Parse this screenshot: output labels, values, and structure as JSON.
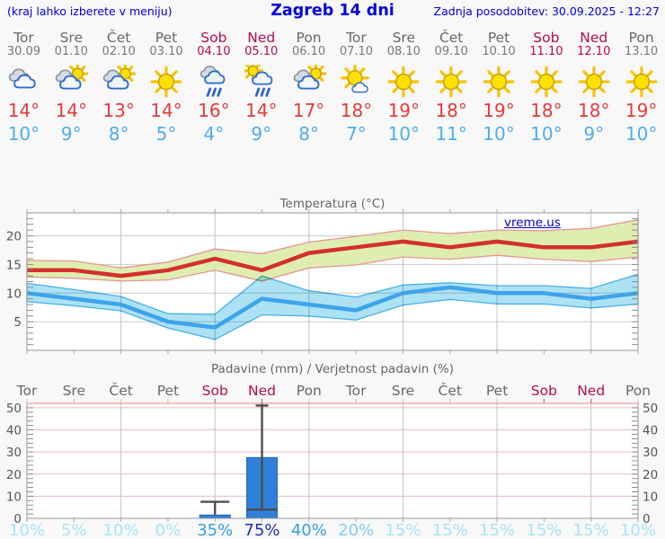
{
  "header": {
    "left_note": "(kraj lahko izberete v meniju)",
    "title": "Zagreb 14 dni",
    "updated": "Zadnja posodobitev: 30.09.2025 - 12:27"
  },
  "days": [
    {
      "name": "Tor",
      "date": "30.09",
      "weekend": false,
      "icon": "cloudy",
      "tmax": "14°",
      "tmin": "10°",
      "prob": "10%"
    },
    {
      "name": "Sre",
      "date": "01.10",
      "weekend": false,
      "icon": "partly-cloudy",
      "tmax": "14°",
      "tmin": "9°",
      "prob": "5%"
    },
    {
      "name": "Čet",
      "date": "02.10",
      "weekend": false,
      "icon": "partly-cloudy",
      "tmax": "13°",
      "tmin": "8°",
      "prob": "10%"
    },
    {
      "name": "Pet",
      "date": "03.10",
      "weekend": false,
      "icon": "sunny",
      "tmax": "14°",
      "tmin": "5°",
      "prob": "0%"
    },
    {
      "name": "Sob",
      "date": "04.10",
      "weekend": true,
      "icon": "rain",
      "tmax": "16°",
      "tmin": "4°",
      "prob": "35%"
    },
    {
      "name": "Ned",
      "date": "05.10",
      "weekend": true,
      "icon": "sun-rain",
      "tmax": "14°",
      "tmin": "9°",
      "prob": "75%"
    },
    {
      "name": "Pon",
      "date": "06.10",
      "weekend": false,
      "icon": "partly-cloudy",
      "tmax": "17°",
      "tmin": "8°",
      "prob": "40%"
    },
    {
      "name": "Tor",
      "date": "07.10",
      "weekend": false,
      "icon": "mostly-sunny",
      "tmax": "18°",
      "tmin": "7°",
      "prob": "20%"
    },
    {
      "name": "Sre",
      "date": "08.10",
      "weekend": false,
      "icon": "sunny",
      "tmax": "19°",
      "tmin": "10°",
      "prob": "15%"
    },
    {
      "name": "Čet",
      "date": "09.10",
      "weekend": false,
      "icon": "sunny",
      "tmax": "18°",
      "tmin": "11°",
      "prob": "15%"
    },
    {
      "name": "Pet",
      "date": "10.10",
      "weekend": false,
      "icon": "sunny",
      "tmax": "19°",
      "tmin": "10°",
      "prob": "15%"
    },
    {
      "name": "Sob",
      "date": "11.10",
      "weekend": true,
      "icon": "sunny",
      "tmax": "18°",
      "tmin": "10°",
      "prob": "15%"
    },
    {
      "name": "Ned",
      "date": "12.10",
      "weekend": true,
      "icon": "sunny",
      "tmax": "18°",
      "tmin": "9°",
      "prob": "15%"
    },
    {
      "name": "Pon",
      "date": "13.10",
      "weekend": false,
      "icon": "sunny",
      "tmax": "19°",
      "tmin": "10°",
      "prob": "10%"
    }
  ],
  "chart_data": [
    {
      "type": "line",
      "title": "Temperatura (°C)",
      "watermark": "vreme.us",
      "categories": [
        "Tor 30.09",
        "Sre 01.10",
        "Čet 02.10",
        "Pet 03.10",
        "Sob 04.10",
        "Ned 05.10",
        "Pon 06.10",
        "Tor 07.10",
        "Sre 08.10",
        "Čet 09.10",
        "Pet 10.10",
        "Sob 11.10",
        "Ned 12.10",
        "Pon 13.10"
      ],
      "ylim": [
        0,
        24
      ],
      "yticks": [
        5,
        10,
        15,
        20
      ],
      "grid": true,
      "legend_position": "none",
      "series": [
        {
          "name": "max temperatura",
          "color": "#d32f2f",
          "values": [
            14,
            14,
            13,
            14,
            16,
            14,
            17,
            18,
            19,
            18,
            19,
            18,
            18,
            19
          ]
        },
        {
          "name": "max razpon zgoraj",
          "values": [
            15.7,
            15.6,
            14.4,
            15.4,
            17.7,
            16.9,
            18.9,
            19.9,
            21.0,
            20.4,
            21.0,
            20.9,
            21.3,
            22.8
          ]
        },
        {
          "name": "max razpon spodaj",
          "values": [
            12.8,
            12.6,
            12.1,
            12.3,
            14.0,
            12.1,
            14.4,
            14.9,
            16.3,
            15.9,
            16.6,
            15.9,
            15.5,
            16.3
          ]
        },
        {
          "name": "min temperatura",
          "color": "#3da4ea",
          "values": [
            10,
            9,
            8,
            5,
            4,
            9,
            8,
            7,
            10,
            11,
            10,
            10,
            9,
            10
          ]
        },
        {
          "name": "min razpon zgoraj",
          "values": [
            11.7,
            10.6,
            9.4,
            6.4,
            6.3,
            13.0,
            10.4,
            9.3,
            11.4,
            11.8,
            11.3,
            11.3,
            10.8,
            13.3
          ]
        },
        {
          "name": "min razpon spodaj",
          "values": [
            8.5,
            7.8,
            6.9,
            3.9,
            1.9,
            6.2,
            6.0,
            5.3,
            7.9,
            8.9,
            8.1,
            8.1,
            7.4,
            8.1
          ]
        }
      ]
    },
    {
      "type": "bar",
      "title": "Padavine (mm) / Verjetnost padavin (%)",
      "categories": [
        "Tor",
        "Sre",
        "Čet",
        "Pet",
        "Sob",
        "Ned",
        "Pon",
        "Tor",
        "Sre",
        "Čet",
        "Pet",
        "Sob",
        "Ned",
        "Pon"
      ],
      "values": [
        0,
        0,
        0,
        0,
        1.5,
        27.5,
        0,
        0,
        0,
        0,
        0,
        0,
        0,
        0
      ],
      "whisker_high": [
        0,
        0,
        0,
        0,
        7.5,
        52,
        0,
        0,
        0,
        0,
        0,
        0,
        0,
        0
      ],
      "whisker_low": [
        0,
        0,
        0,
        0,
        1.5,
        4,
        0,
        0,
        0,
        0,
        0,
        0,
        0,
        0
      ],
      "probabilities": [
        "10%",
        "5%",
        "10%",
        "0%",
        "35%",
        "75%",
        "40%",
        "20%",
        "15%",
        "15%",
        "15%",
        "15%",
        "15%",
        "10%"
      ],
      "ylim": [
        0,
        52
      ],
      "yticks": [
        0,
        10,
        20,
        30,
        40,
        50
      ],
      "grid": true,
      "y_axis_sides": "both"
    }
  ],
  "colors": {
    "accent_blue": "#0000e0",
    "weekday_text": "#686868",
    "weekend_text": "#b70b50",
    "tmax_text": "#e23b3b",
    "tmin_text": "#4facee",
    "tmax_line": "#d32f2f",
    "tmax_band": "#dcecaa",
    "tmax_band_edge": "#e59595",
    "tmin_line": "#3da4ea",
    "tmin_band": "#a6dff3",
    "tmin_band_edge": "#49b0ea",
    "bar_fill": "#2e80d8",
    "bar_edge": "#2266b8",
    "whisker": "#4d4d4d",
    "grid_v": "#c3c3c3",
    "grid_h_temp": "#cbcbcb",
    "grid_h_precip": "#e8bcbc",
    "frame": "#999999",
    "axis_text": "#555555",
    "title_text": "#666666",
    "prob_low": "#a9e3f7",
    "prob_mid_low": "#7fd2f0",
    "prob_mid": "#37a0e2",
    "prob_high": "#1c30b2"
  }
}
